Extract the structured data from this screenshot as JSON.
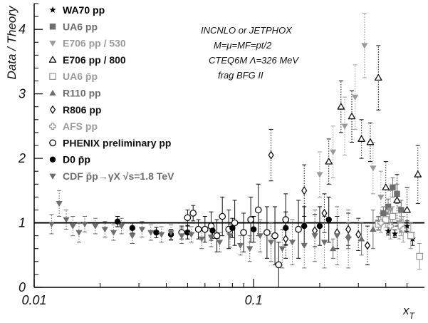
{
  "chart_data": {
    "type": "scatter",
    "xlabel": "x_T",
    "ylabel": "Data / Theory",
    "x_scale": "log",
    "xlim": [
      0.01,
      0.6
    ],
    "ylim": [
      0,
      4.4
    ],
    "x_ticks": [
      0.01,
      0.1
    ],
    "x_tick_labels": [
      "0.01",
      "0.1"
    ],
    "y_ticks": [
      0,
      1,
      2,
      3,
      4
    ],
    "y_tick_labels": [
      "0",
      "1",
      "2",
      "3",
      "4"
    ],
    "reference_line": 1,
    "legend_position": "top-left",
    "annotations": [
      "INCNLO or JETPHOX",
      "M=μ=MF=pt/2",
      "CTEQ6M Λ=326 MeV",
      "frag BFG II"
    ],
    "colors": {
      "black": "#000000",
      "gray": "#6e6e6e",
      "lightgray": "#9a9a9a"
    },
    "series": [
      {
        "name": "WA70 pp",
        "marker": "star",
        "color": "#000000",
        "error": "solid",
        "points": [
          [
            0.41,
            0.87,
            0.06
          ],
          [
            0.44,
            0.83,
            0.06
          ],
          [
            0.47,
            0.93,
            0.07
          ],
          [
            0.5,
            0.95,
            0.08
          ],
          [
            0.53,
            0.75,
            0.1
          ]
        ]
      },
      {
        "name": "UA6 pp",
        "marker": "square-filled",
        "color": "#6e6e6e",
        "error": "solid",
        "points": [
          [
            0.37,
            1.0,
            0.1
          ],
          [
            0.39,
            1.15,
            0.1
          ],
          [
            0.41,
            1.25,
            0.12
          ],
          [
            0.43,
            1.55,
            0.15
          ],
          [
            0.45,
            1.45,
            0.15
          ],
          [
            0.47,
            1.2,
            0.15
          ]
        ]
      },
      {
        "name": "E706 pp / 530",
        "marker": "triangle-down",
        "color": "#9a9a9a",
        "error": "dotted",
        "points": [
          [
            0.2,
            1.75,
            0.35
          ],
          [
            0.23,
            2.1,
            0.4
          ],
          [
            0.26,
            2.5,
            0.45
          ],
          [
            0.29,
            2.95,
            0.5
          ],
          [
            0.32,
            3.75,
            0.5
          ],
          [
            0.35,
            1.85,
            0.4
          ],
          [
            0.38,
            1.4,
            0.4
          ],
          [
            0.42,
            1.2,
            0.3
          ],
          [
            0.46,
            1.0,
            0.25
          ]
        ]
      },
      {
        "name": "E706 pp / 800",
        "marker": "triangle-open",
        "color": "#111111",
        "error": "dotted",
        "points": [
          [
            0.22,
            1.95,
            0.35
          ],
          [
            0.25,
            2.8,
            0.4
          ],
          [
            0.28,
            2.65,
            0.4
          ],
          [
            0.31,
            2.3,
            0.3
          ],
          [
            0.34,
            2.25,
            0.3
          ],
          [
            0.37,
            3.25,
            0.5
          ],
          [
            0.4,
            1.55,
            0.4
          ],
          [
            0.45,
            1.35,
            0.4
          ],
          [
            0.5,
            1.2,
            0.35
          ],
          [
            0.56,
            1.75,
            0.45
          ]
        ]
      },
      {
        "name": "UA6 p̄p",
        "marker": "square-open",
        "color": "#9a9a9a",
        "error": "solid",
        "points": [
          [
            0.37,
            0.98,
            0.1
          ],
          [
            0.4,
            1.05,
            0.12
          ],
          [
            0.43,
            1.1,
            0.15
          ],
          [
            0.47,
            0.95,
            0.15
          ],
          [
            0.52,
            0.8,
            0.2
          ],
          [
            0.57,
            0.48,
            0.2
          ]
        ]
      },
      {
        "name": "R110 pp",
        "marker": "triangle-filled",
        "color": "#6e6e6e",
        "error": "solid",
        "points": [
          [
            0.23,
            0.6,
            0.15
          ],
          [
            0.27,
            0.8,
            0.2
          ],
          [
            0.31,
            0.75,
            0.25
          ],
          [
            0.35,
            0.9,
            0.3
          ]
        ]
      },
      {
        "name": "R806 pp",
        "marker": "diamond-open",
        "color": "#111111",
        "error": "dotted",
        "points": [
          [
            0.12,
            2.05,
            0.4
          ],
          [
            0.14,
            0.75,
            0.3
          ],
          [
            0.17,
            1.5,
            0.4
          ],
          [
            0.19,
            0.88,
            0.25
          ],
          [
            0.21,
            1.15,
            0.3
          ],
          [
            0.24,
            0.85,
            0.25
          ],
          [
            0.27,
            0.9,
            0.25
          ],
          [
            0.3,
            0.82,
            0.25
          ],
          [
            0.33,
            0.65,
            0.3
          ]
        ]
      },
      {
        "name": "AFS pp",
        "marker": "cross-open",
        "color": "#9a9a9a",
        "error": "solid",
        "points": [
          [
            0.38,
            1.0,
            0.15
          ],
          [
            0.42,
            0.95,
            0.2
          ],
          [
            0.48,
            0.9,
            0.2
          ]
        ]
      },
      {
        "name": "PHENIX preliminary pp",
        "marker": "circle-open",
        "color": "#111111",
        "error": "solid",
        "points": [
          [
            0.047,
            0.85,
            0.1
          ],
          [
            0.05,
            1.08,
            0.12
          ],
          [
            0.053,
            1.15,
            0.12
          ],
          [
            0.056,
            0.9,
            0.15
          ],
          [
            0.06,
            0.9,
            0.2
          ],
          [
            0.064,
            0.95,
            0.22
          ],
          [
            0.068,
            0.8,
            0.25
          ],
          [
            0.072,
            1.1,
            0.3
          ],
          [
            0.077,
            0.9,
            0.3
          ],
          [
            0.082,
            1.0,
            0.35
          ],
          [
            0.09,
            0.85,
            0.3
          ],
          [
            0.097,
            1.05,
            0.35
          ],
          [
            0.105,
            1.2,
            0.4
          ],
          [
            0.115,
            0.85,
            0.4
          ],
          [
            0.125,
            0.8,
            0.45
          ],
          [
            0.13,
            0.35,
            0.35
          ],
          [
            0.14,
            1.05,
            0.4
          ],
          [
            0.16,
            0.9,
            0.45
          ]
        ]
      },
      {
        "name": "D0 p̄p",
        "marker": "circle-filled",
        "color": "#000000",
        "error": "solid",
        "points": [
          [
            0.024,
            1.02,
            0.08
          ],
          [
            0.028,
            0.92,
            0.08
          ],
          [
            0.036,
            0.85,
            0.08
          ],
          [
            0.042,
            0.82,
            0.08
          ],
          [
            0.05,
            0.85,
            0.1
          ],
          [
            0.065,
            0.88,
            0.12
          ],
          [
            0.08,
            0.92,
            0.15
          ],
          [
            0.1,
            0.9,
            0.2
          ],
          [
            0.14,
            0.92,
            0.25
          ],
          [
            0.17,
            0.95,
            0.3
          ],
          [
            0.2,
            0.95,
            0.3
          ],
          [
            0.22,
            1.05,
            0.35
          ]
        ]
      },
      {
        "name": "CDF p̄p→γX √s=1.8 TeV",
        "marker": "triangle-down",
        "color": "#6e6e6e",
        "error": "dotted",
        "points": [
          [
            0.012,
            0.98,
            0.15
          ],
          [
            0.013,
            1.3,
            0.2
          ],
          [
            0.014,
            1.05,
            0.15
          ],
          [
            0.015,
            0.95,
            0.15
          ],
          [
            0.016,
            0.85,
            0.15
          ],
          [
            0.017,
            0.98,
            0.12
          ],
          [
            0.019,
            0.95,
            0.12
          ],
          [
            0.021,
            0.9,
            0.12
          ],
          [
            0.023,
            0.85,
            0.12
          ],
          [
            0.025,
            0.95,
            0.12
          ],
          [
            0.028,
            0.8,
            0.12
          ],
          [
            0.031,
            0.9,
            0.12
          ],
          [
            0.034,
            0.85,
            0.12
          ],
          [
            0.038,
            0.82,
            0.12
          ],
          [
            0.042,
            0.85,
            0.12
          ],
          [
            0.047,
            0.8,
            0.12
          ],
          [
            0.052,
            0.82,
            0.12
          ],
          [
            0.058,
            0.75,
            0.15
          ],
          [
            0.064,
            0.78,
            0.15
          ],
          [
            0.07,
            0.7,
            0.15
          ],
          [
            0.078,
            0.8,
            0.18
          ],
          [
            0.087,
            0.65,
            0.15
          ],
          [
            0.096,
            0.6,
            0.2
          ],
          [
            0.107,
            0.8,
            0.25
          ],
          [
            0.12,
            0.7,
            0.3
          ],
          [
            0.135,
            0.6,
            0.3
          ],
          [
            0.15,
            0.7,
            0.35
          ],
          [
            0.17,
            0.65,
            0.35
          ],
          [
            0.19,
            0.8,
            0.4
          ],
          [
            0.21,
            0.7,
            0.4
          ],
          [
            0.24,
            0.8,
            0.45
          ],
          [
            0.27,
            0.75,
            0.45
          ]
        ]
      }
    ]
  }
}
